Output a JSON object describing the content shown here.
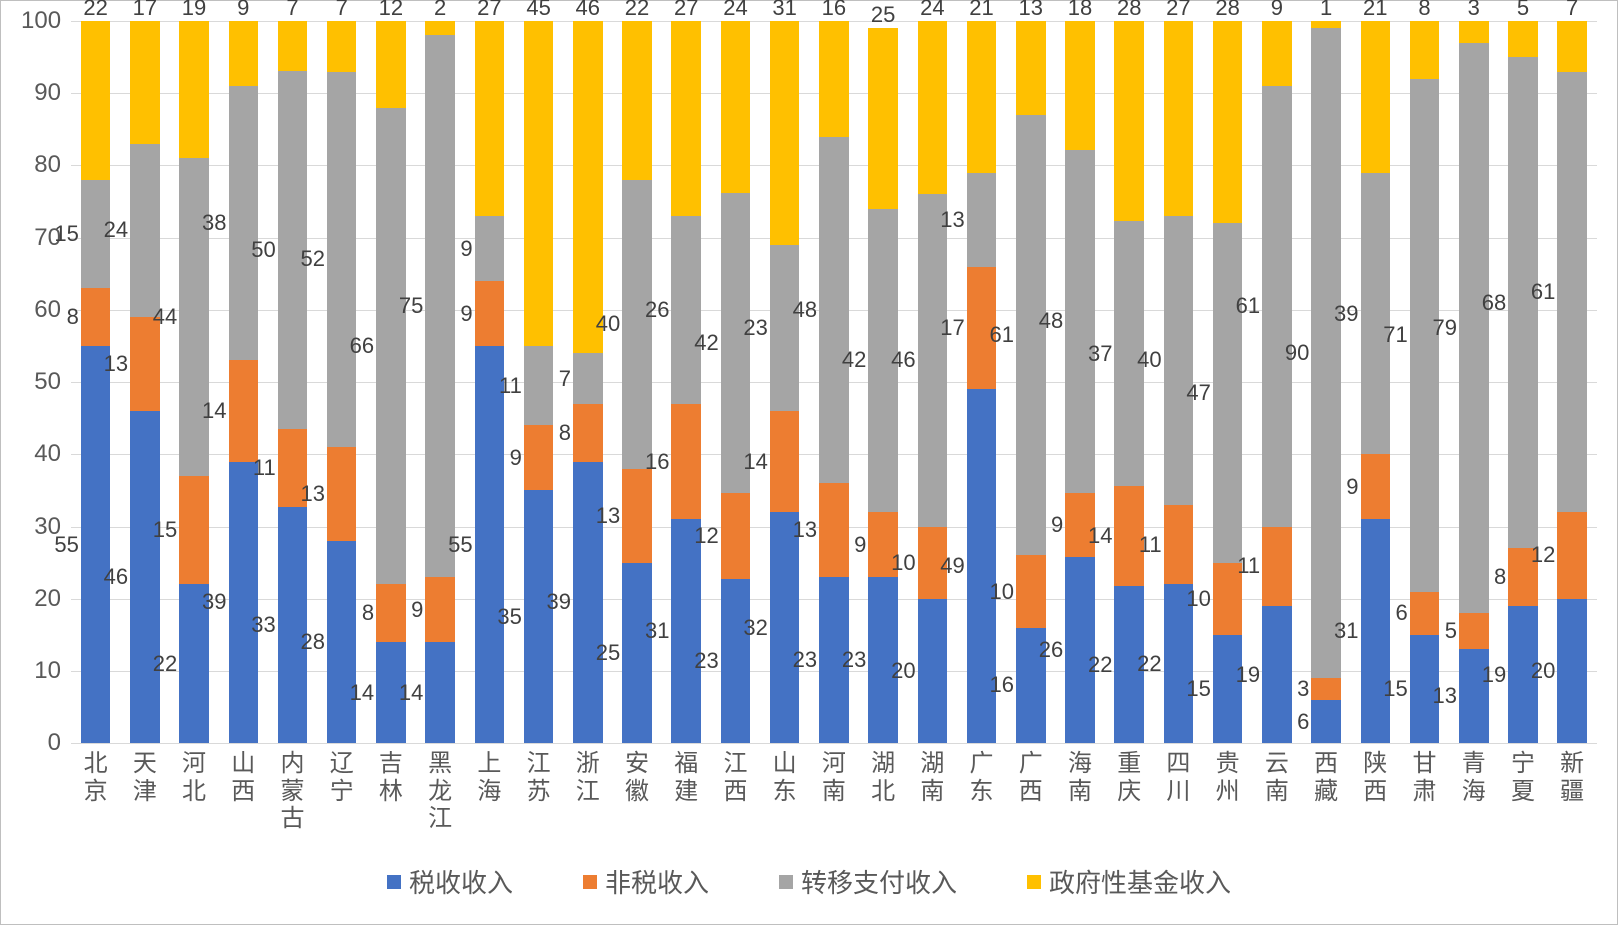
{
  "chart": {
    "type": "stacked-bar-100",
    "background_color": "#ffffff",
    "border_color": "#bfbfbf",
    "grid_color": "#d9d9d9",
    "text_color": "#595959",
    "label_fontsize": 22,
    "axis_fontsize": 24,
    "legend_fontsize": 26,
    "ylim": [
      0,
      100
    ],
    "ytick_step": 10,
    "yticks": [
      0,
      10,
      20,
      30,
      40,
      50,
      60,
      70,
      80,
      90,
      100
    ],
    "series": [
      {
        "key": "tax",
        "label": "税收收入",
        "color": "#4472c4"
      },
      {
        "key": "nontax",
        "label": "非税收入",
        "color": "#ed7d31"
      },
      {
        "key": "transfer",
        "label": "转移支付收入",
        "color": "#a5a5a5"
      },
      {
        "key": "fund",
        "label": "政府性基金收入",
        "color": "#ffc000"
      }
    ],
    "categories": [
      "北京",
      "天津",
      "河北",
      "山西",
      "内蒙古",
      "辽宁",
      "吉林",
      "黑龙江",
      "上海",
      "江苏",
      "浙江",
      "安徽",
      "福建",
      "江西",
      "山东",
      "河南",
      "湖北",
      "湖南",
      "广东",
      "广西",
      "海南",
      "重庆",
      "四川",
      "贵州",
      "云南",
      "西藏",
      "陕西",
      "甘肃",
      "青海",
      "宁夏",
      "新疆"
    ],
    "data": [
      {
        "tax": 55,
        "nontax": 8,
        "transfer": 15,
        "fund": 22
      },
      {
        "tax": 46,
        "nontax": 13,
        "transfer": 24,
        "fund": 17
      },
      {
        "tax": 22,
        "nontax": 15,
        "transfer": 44,
        "fund": 19
      },
      {
        "tax": 39,
        "nontax": 14,
        "transfer": 38,
        "fund": 9
      },
      {
        "tax": 33,
        "nontax": 11,
        "transfer": 50,
        "fund": 7
      },
      {
        "tax": 28,
        "nontax": 13,
        "transfer": 52,
        "fund": 7
      },
      {
        "tax": 14,
        "nontax": 8,
        "transfer": 66,
        "fund": 12
      },
      {
        "tax": 14,
        "nontax": 9,
        "transfer": 75,
        "fund": 2
      },
      {
        "tax": 55,
        "nontax": 9,
        "transfer": 9,
        "fund": 27
      },
      {
        "tax": 35,
        "nontax": 9,
        "transfer": 11,
        "fund": 45
      },
      {
        "tax": 39,
        "nontax": 8,
        "transfer": 7,
        "fund": 46
      },
      {
        "tax": 25,
        "nontax": 13,
        "transfer": 40,
        "fund": 22
      },
      {
        "tax": 31,
        "nontax": 16,
        "transfer": 26,
        "fund": 27
      },
      {
        "tax": 23,
        "nontax": 12,
        "transfer": 42,
        "fund": 24
      },
      {
        "tax": 32,
        "nontax": 14,
        "transfer": 23,
        "fund": 31
      },
      {
        "tax": 23,
        "nontax": 13,
        "transfer": 48,
        "fund": 16
      },
      {
        "tax": 23,
        "nontax": 9,
        "transfer": 42,
        "fund": 25
      },
      {
        "tax": 20,
        "nontax": 10,
        "transfer": 46,
        "fund": 24
      },
      {
        "tax": 49,
        "nontax": 17,
        "transfer": 13,
        "fund": 21
      },
      {
        "tax": 16,
        "nontax": 10,
        "transfer": 61,
        "fund": 13
      },
      {
        "tax": 26,
        "nontax": 9,
        "transfer": 48,
        "fund": 18
      },
      {
        "tax": 22,
        "nontax": 14,
        "transfer": 37,
        "fund": 28
      },
      {
        "tax": 22,
        "nontax": 11,
        "transfer": 40,
        "fund": 27
      },
      {
        "tax": 15,
        "nontax": 10,
        "transfer": 47,
        "fund": 28
      },
      {
        "tax": 19,
        "nontax": 11,
        "transfer": 61,
        "fund": 9
      },
      {
        "tax": 6,
        "nontax": 3,
        "transfer": 90,
        "fund": 1
      },
      {
        "tax": 31,
        "nontax": 9,
        "transfer": 39,
        "fund": 21
      },
      {
        "tax": 15,
        "nontax": 6,
        "transfer": 71,
        "fund": 8
      },
      {
        "tax": 13,
        "nontax": 5,
        "transfer": 79,
        "fund": 3
      },
      {
        "tax": 19,
        "nontax": 8,
        "transfer": 68,
        "fund": 5
      },
      {
        "tax": 20,
        "nontax": 12,
        "transfer": 61,
        "fund": 7
      }
    ]
  }
}
